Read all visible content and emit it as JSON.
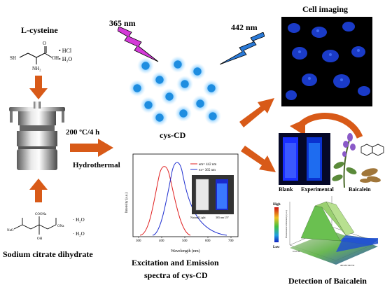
{
  "labels": {
    "l_cysteine": "L-cysteine",
    "hcl": "• HCl",
    "h2o": "• H₂O",
    "sodium_citrate": "Sodium citrate dihydrate",
    "h2o_a": "· H₂O",
    "h2o_b": "· H₂O",
    "condition": "200 ºC/4 h",
    "hydrothermal": "Hydrothermal",
    "uv_365": "365 nm",
    "emit_442": "442 nm",
    "cys_cd": "cys-CD",
    "spectra_line1": "Excitation and Emission",
    "spectra_line2": "spectra of cys-CD",
    "cell_imaging": "Cell imaging",
    "blank": "Blank",
    "experimental": "Experimental",
    "baicalein": "Baicalein",
    "detection": "Detection of Baicalein"
  },
  "chem": {
    "sh": "SH",
    "nh2": "NH₂",
    "oh": "OH",
    "o": "O"
  },
  "spectra": {
    "ylabel": "Intensity (a.u.)",
    "xlabel": "Wavelength (nm)",
    "legend": [
      "em= 442 nm",
      "ex= 365 nm"
    ],
    "xticks": [
      "300",
      "400",
      "500",
      "600",
      "700"
    ],
    "vial_natural": "Natural Light",
    "vial_uv": "365 nm UV",
    "colors": {
      "excitation": "#e02020",
      "emission": "#2030d0"
    }
  },
  "surface": {
    "colorbar_high": "High",
    "colorbar_low": "Low",
    "z_label": "Fluorescence Intensity (a.u.)"
  },
  "colors": {
    "arrow": "#d85a18",
    "uv_bolt": "#d43ad8",
    "emit_bolt": "#2a7ad8",
    "dot": "#1e8de0"
  }
}
